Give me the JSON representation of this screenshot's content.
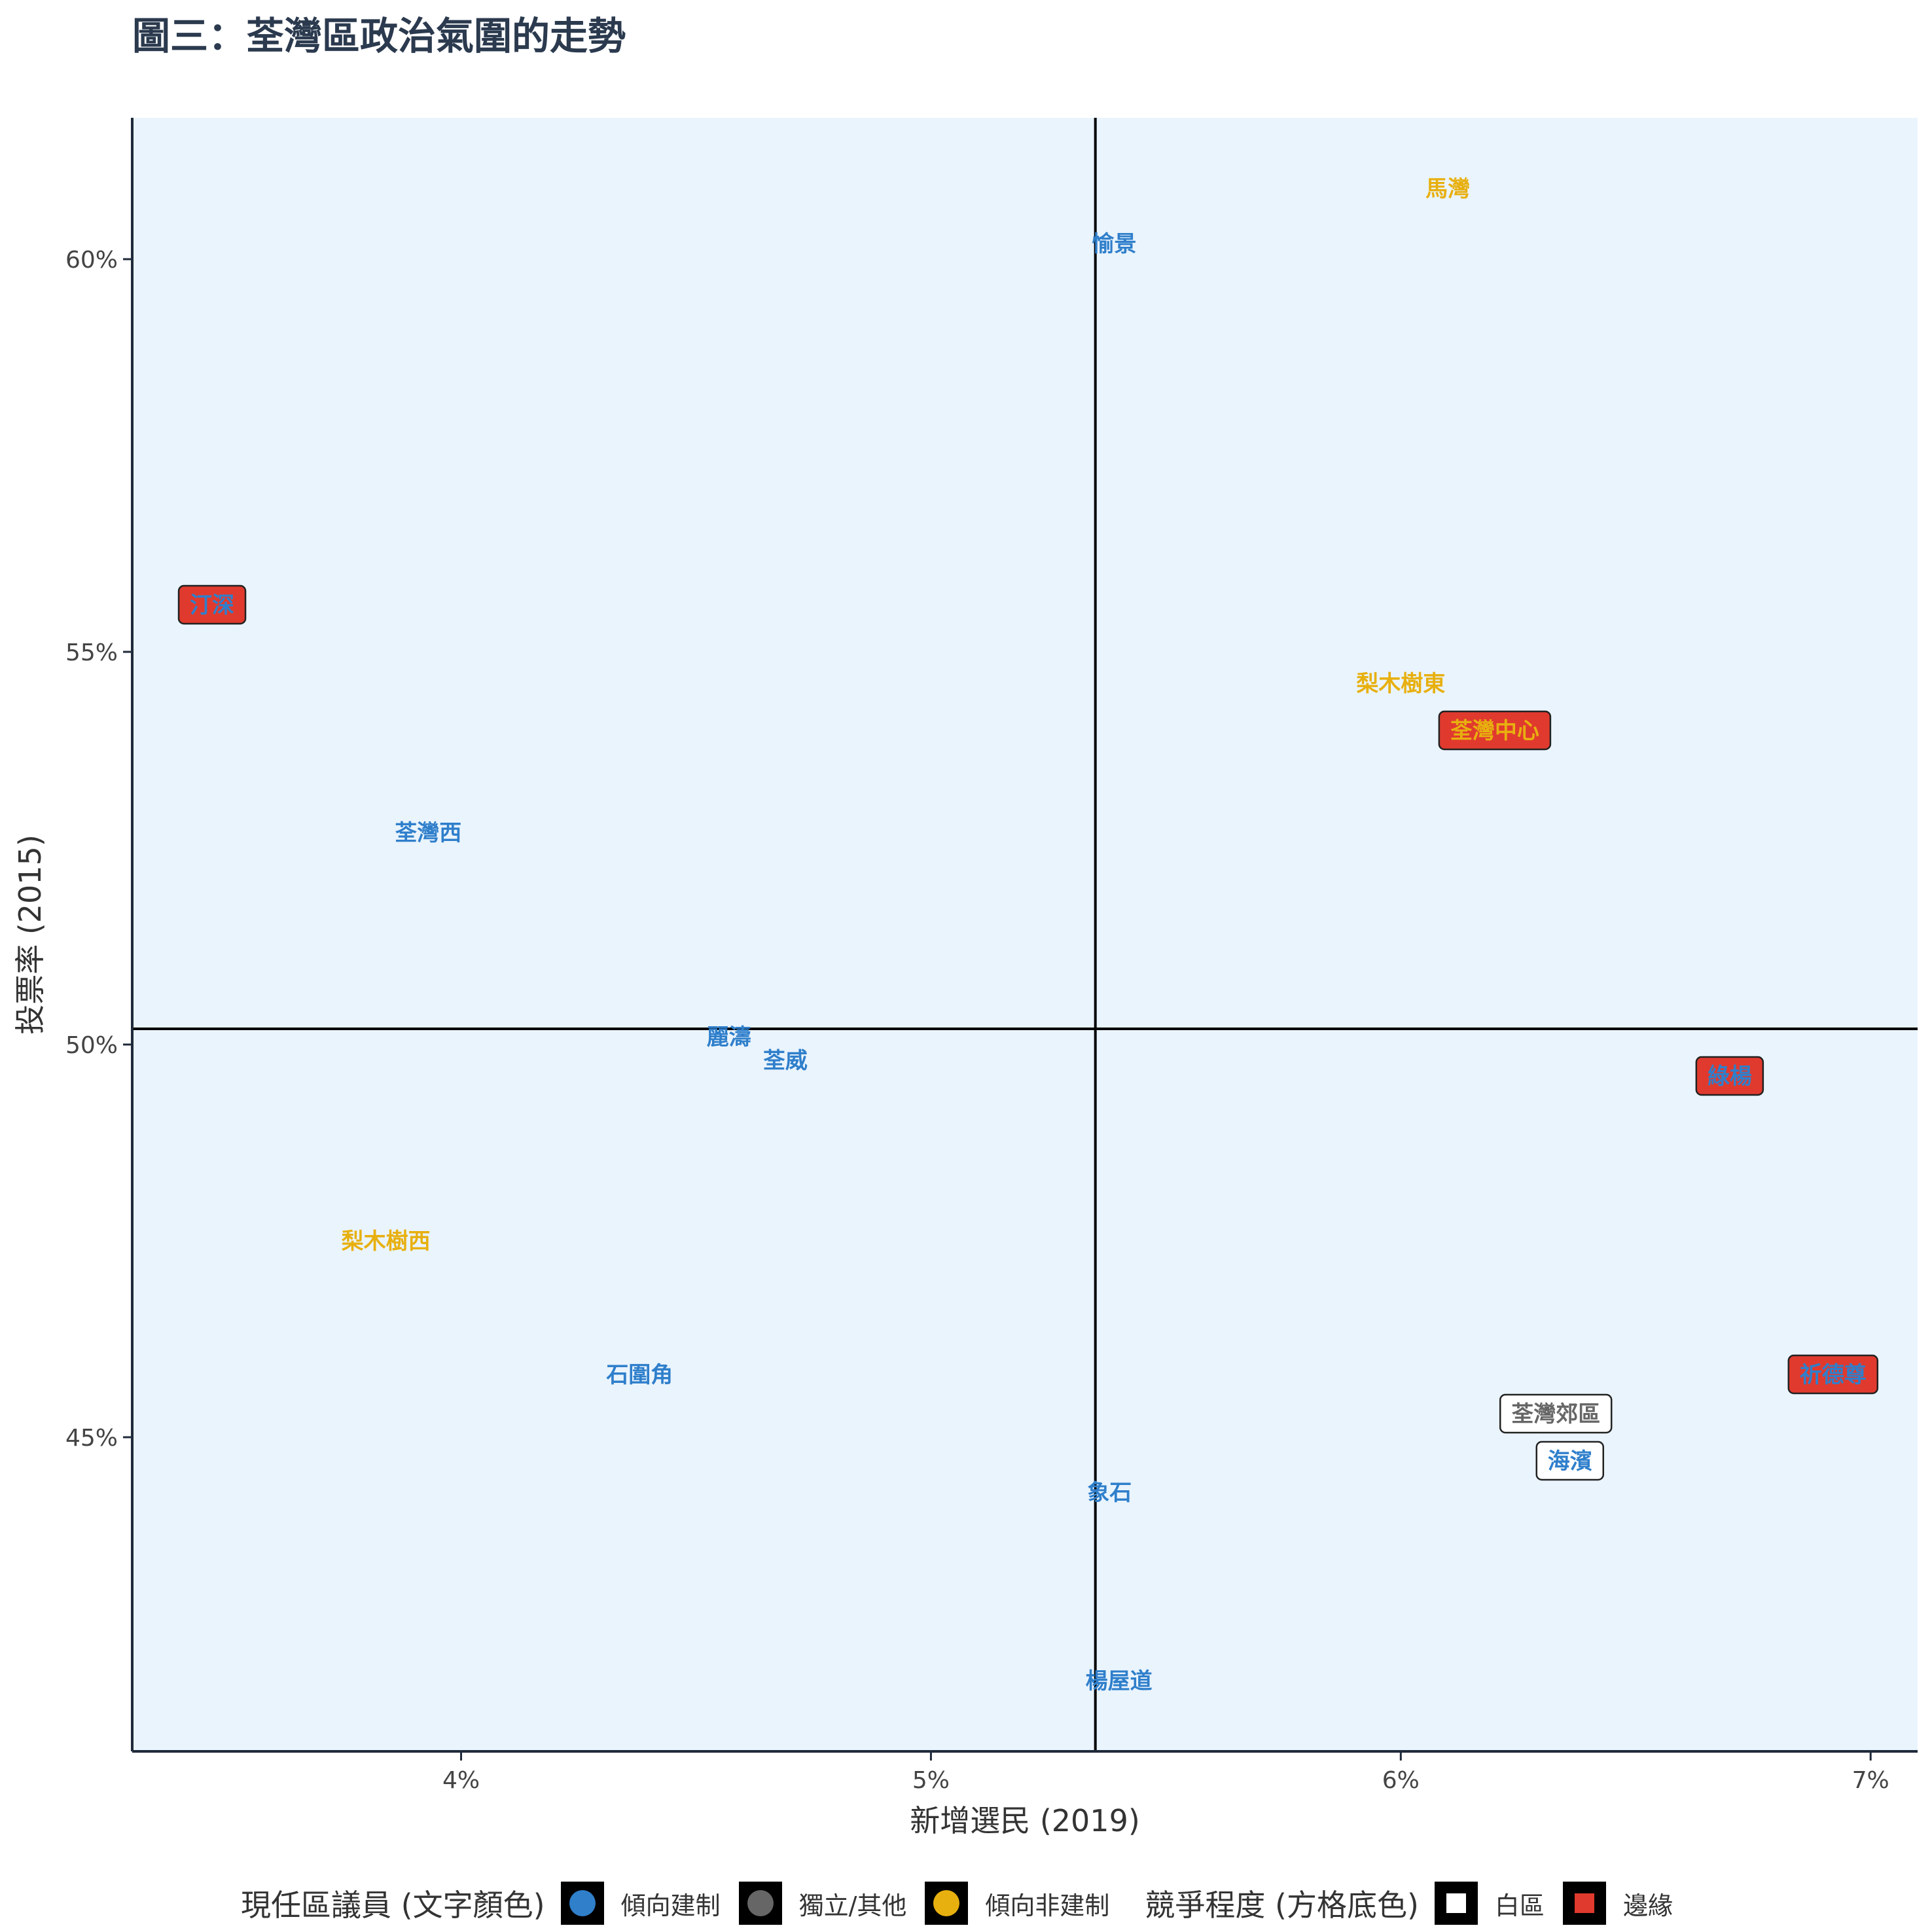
{
  "title": "圖三：荃灣區政治氣圍的走勢",
  "legend": {
    "councillor_title": "現任區議員 (文字顏色)",
    "councillor_items": [
      {
        "label": "傾向建制",
        "color": "#2f7fcb"
      },
      {
        "label": "獨立/其他",
        "color": "#666666"
      },
      {
        "label": "傾向非建制",
        "color": "#e8b00f"
      }
    ],
    "competition_title": "競爭程度 (方格底色)",
    "competition_items": [
      {
        "label": "白區",
        "color": "#ffffff"
      },
      {
        "label": "邊緣",
        "color": "#e03a2e"
      }
    ]
  },
  "chart_data": {
    "type": "scatter",
    "title": "圖三：荃灣區政治氣圍的走勢",
    "xlabel": "新增選民 (2019)",
    "ylabel": "投票率 (2015)",
    "xlim": [
      3.3,
      7.1
    ],
    "ylim": [
      41.0,
      61.8
    ],
    "x_ticks": [
      4,
      5,
      6,
      7
    ],
    "x_tick_labels": [
      "4%",
      "5%",
      "6%",
      "7%"
    ],
    "y_ticks": [
      45,
      50,
      55,
      60
    ],
    "y_tick_labels": [
      "45%",
      "50%",
      "55%",
      "60%"
    ],
    "reference_lines": {
      "x": 5.35,
      "y": 50.2
    },
    "panel_color": "#eaf4fd",
    "grid": false,
    "legend_position": "bottom",
    "colors": {
      "傾向建制": "#2f7fcb",
      "獨立/其他": "#666666",
      "傾向非建制": "#e8b00f",
      "邊緣": "#e03a2e",
      "白區": "#ffffff"
    },
    "points": [
      {
        "label": "馬灣",
        "x": 6.1,
        "y": 60.9,
        "councillor": "傾向非建制",
        "competition": ""
      },
      {
        "label": "愉景",
        "x": 5.39,
        "y": 60.2,
        "councillor": "傾向建制",
        "competition": ""
      },
      {
        "label": "汀深",
        "x": 3.47,
        "y": 55.6,
        "councillor": "傾向建制",
        "competition": "邊緣"
      },
      {
        "label": "梨木樹東",
        "x": 6.0,
        "y": 54.6,
        "councillor": "傾向非建制",
        "competition": ""
      },
      {
        "label": "荃灣中心",
        "x": 6.2,
        "y": 54.0,
        "councillor": "傾向非建制",
        "competition": "邊緣"
      },
      {
        "label": "荃灣西",
        "x": 3.93,
        "y": 52.7,
        "councillor": "傾向建制",
        "competition": ""
      },
      {
        "label": "麗濤",
        "x": 4.57,
        "y": 50.1,
        "councillor": "傾向建制",
        "competition": ""
      },
      {
        "label": "荃威",
        "x": 4.69,
        "y": 49.8,
        "councillor": "傾向建制",
        "competition": ""
      },
      {
        "label": "綠楊",
        "x": 6.7,
        "y": 49.6,
        "councillor": "傾向建制",
        "competition": "邊緣"
      },
      {
        "label": "梨木樹西",
        "x": 3.84,
        "y": 47.5,
        "councillor": "傾向非建制",
        "competition": ""
      },
      {
        "label": "石圍角",
        "x": 4.38,
        "y": 45.8,
        "councillor": "傾向建制",
        "competition": ""
      },
      {
        "label": "祈德尊",
        "x": 6.92,
        "y": 45.8,
        "councillor": "傾向建制",
        "competition": "邊緣"
      },
      {
        "label": "荃灣郊區",
        "x": 6.33,
        "y": 45.3,
        "councillor": "獨立/其他",
        "competition": "白區"
      },
      {
        "label": "海濱",
        "x": 6.36,
        "y": 44.7,
        "councillor": "傾向建制",
        "competition": "白區"
      },
      {
        "label": "象石",
        "x": 5.38,
        "y": 44.3,
        "councillor": "傾向建制",
        "competition": ""
      },
      {
        "label": "楊屋道",
        "x": 5.4,
        "y": 41.9,
        "councillor": "傾向建制",
        "competition": ""
      }
    ]
  }
}
